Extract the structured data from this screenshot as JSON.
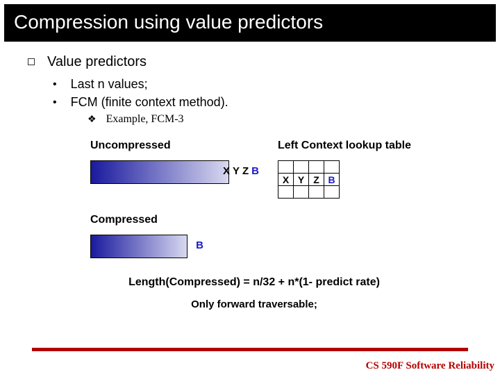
{
  "title": "Compression using value predictors",
  "lvl1": "Value predictors",
  "lvl2": [
    "Last n values;",
    "FCM (finite context method)."
  ],
  "lvl3": "Example, FCM-3",
  "uncompressed_label": "Uncompressed",
  "lookup_label": "Left Context lookup table",
  "compressed_label": "Compressed",
  "bar_letters": [
    "X",
    "Y",
    "Z",
    "B"
  ],
  "compressed_letter": "B",
  "formula": "Length(Compressed) = n/32 + n*(1- predict rate)",
  "note": "Only forward traversable;",
  "footer": "CS 590F Software Reliability",
  "colors": {
    "title_bg": "#000000",
    "title_fg": "#ffffff",
    "accent": "#b40000",
    "blue": "#1a1ac8",
    "grad_start": "#1a1a9e",
    "grad_end": "#d8d8f0"
  }
}
